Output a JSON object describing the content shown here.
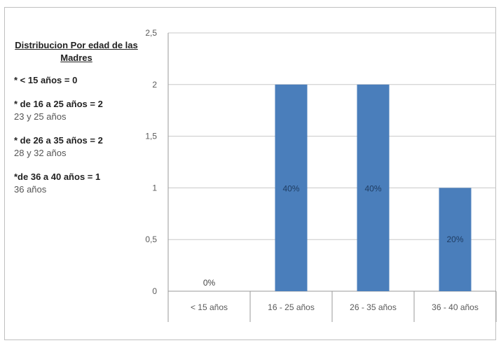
{
  "sidebar": {
    "title": "Distribucion Por edad de las Madres",
    "items": [
      {
        "heading": "* < 15 años = 0",
        "detail": ""
      },
      {
        "heading": "* de 16 a 25 años = 2",
        "detail": "23 y 25 años"
      },
      {
        "heading": "* de 26 a 35 años = 2",
        "detail": "28 y 32 años"
      },
      {
        "heading": "*de 36 a 40 años = 1",
        "detail": "36 años"
      }
    ]
  },
  "colors": {
    "bar": "#4a7ebb",
    "grid": "#c8c8c8",
    "axis": "#9a9a9a",
    "tick_text": "#5a5a5a",
    "data_label": "#1f3d63"
  },
  "chart_data": {
    "type": "bar",
    "categories": [
      "< 15 años",
      "16 - 25 años",
      "26 - 35 años",
      "36 - 40 años"
    ],
    "values": [
      0,
      2,
      2,
      1
    ],
    "data_labels": [
      "0%",
      "40%",
      "40%",
      "20%"
    ],
    "y_ticks": [
      "0",
      "0,5",
      "1",
      "1,5",
      "2",
      "2,5"
    ],
    "ylim": [
      0,
      2.5
    ],
    "grid": true,
    "legend": false,
    "title": "",
    "xlabel": "",
    "ylabel": ""
  }
}
